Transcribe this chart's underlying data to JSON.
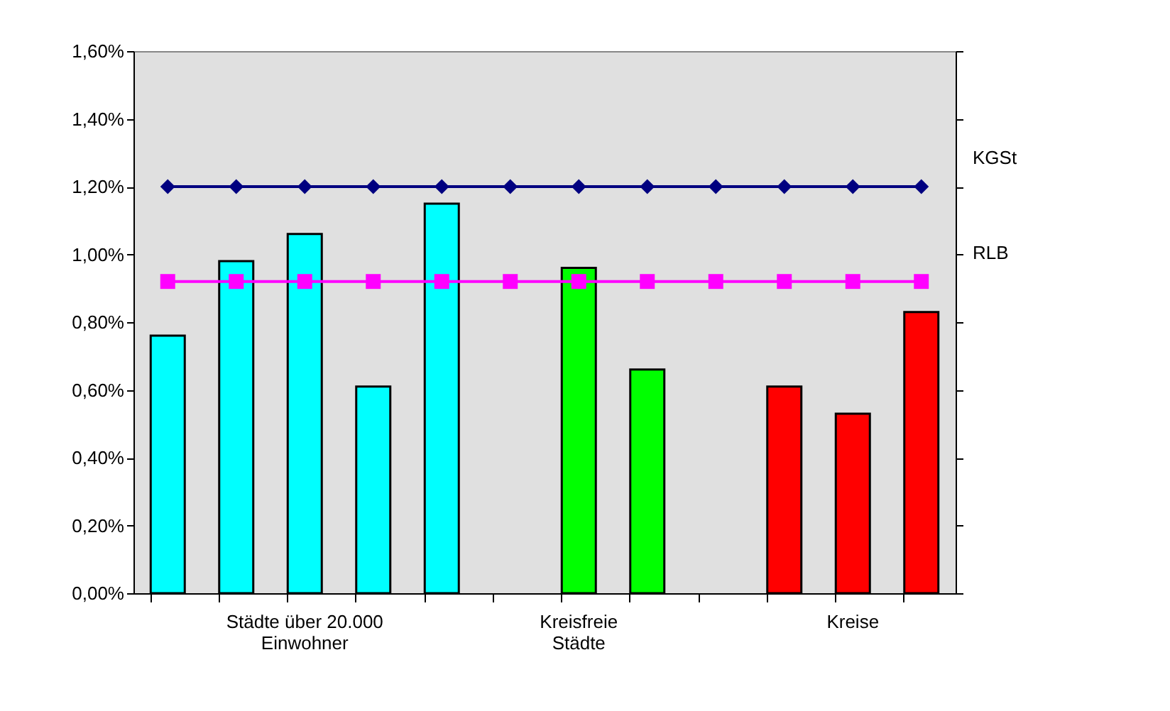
{
  "chart_data": {
    "type": "bar",
    "categories": [
      null,
      null,
      "Städte über 20.000\nEinwohner",
      null,
      null,
      null,
      "Kreisfreie\nStädte",
      null,
      null,
      null,
      "Kreise",
      null
    ],
    "series": [
      {
        "values": [
          0.76,
          0.98,
          1.06,
          0.61,
          1.15,
          null,
          0.96,
          0.66,
          null,
          0.61,
          0.53,
          0.83
        ],
        "colors": [
          "#00ffff",
          "#00ffff",
          "#00ffff",
          "#00ffff",
          "#00ffff",
          "#00ffff",
          "#00ff00",
          "#00ff00",
          "#ff0000",
          "#ff0000",
          "#ff0000",
          "#ff0000"
        ]
      },
      {
        "type": "line",
        "name": "KGSt",
        "color": "#000080",
        "marker": "diamond",
        "values": [
          1.2,
          1.2,
          1.2,
          1.2,
          1.2,
          1.2,
          1.2,
          1.2,
          1.2,
          1.2,
          1.2,
          1.2
        ]
      },
      {
        "type": "line",
        "name": "RLB",
        "color": "#ff00ff",
        "marker": "square",
        "values": [
          0.92,
          0.92,
          0.92,
          0.92,
          0.92,
          0.92,
          0.92,
          0.92,
          0.92,
          0.92,
          0.92,
          0.92
        ]
      }
    ],
    "ylim": [
      0,
      1.6
    ],
    "yticks": [
      {
        "value": 0,
        "label": "0,00%"
      },
      {
        "value": 0.2,
        "label": "0,20%"
      },
      {
        "value": 0.4,
        "label": "0,40%"
      },
      {
        "value": 0.6,
        "label": "0,60%"
      },
      {
        "value": 0.8,
        "label": "0,80%"
      },
      {
        "value": 1.0,
        "label": "1,00%"
      },
      {
        "value": 1.2,
        "label": "1,20%"
      },
      {
        "value": 1.4,
        "label": "1,40%"
      },
      {
        "value": 1.6,
        "label": "1,60%"
      }
    ],
    "grid": false,
    "legend": false
  }
}
